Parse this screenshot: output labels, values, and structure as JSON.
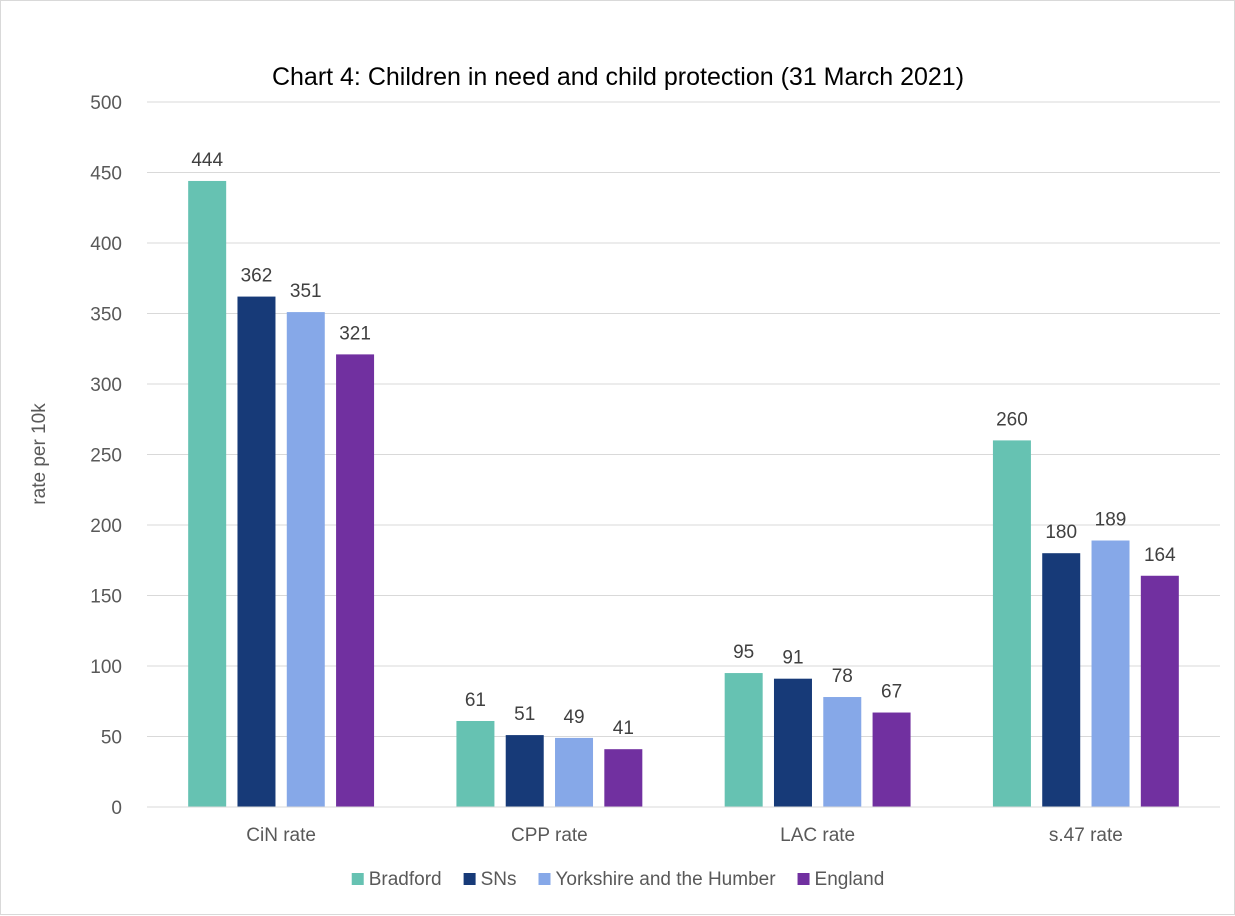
{
  "chart_data": {
    "type": "bar",
    "title": "Chart 4: Children in need and child protection (31 March 2021)",
    "xlabel": "",
    "ylabel": "rate per 10k",
    "ylim": [
      0,
      500
    ],
    "yticks": [
      0,
      50,
      100,
      150,
      200,
      250,
      300,
      350,
      400,
      450,
      500
    ],
    "grid": true,
    "legend_position": "bottom",
    "categories": [
      "CiN rate",
      "CPP rate",
      "LAC rate",
      "s.47 rate"
    ],
    "series": [
      {
        "name": "Bradford",
        "color": "#66c2b2",
        "values": [
          444,
          61,
          95,
          260
        ]
      },
      {
        "name": "SNs",
        "color": "#173a78",
        "values": [
          362,
          51,
          91,
          180
        ]
      },
      {
        "name": "Yorkshire and the Humber",
        "color": "#86a8e8",
        "values": [
          351,
          49,
          78,
          189
        ]
      },
      {
        "name": "England",
        "color": "#7130a0",
        "values": [
          321,
          41,
          67,
          164
        ]
      }
    ],
    "data_labels": true
  }
}
